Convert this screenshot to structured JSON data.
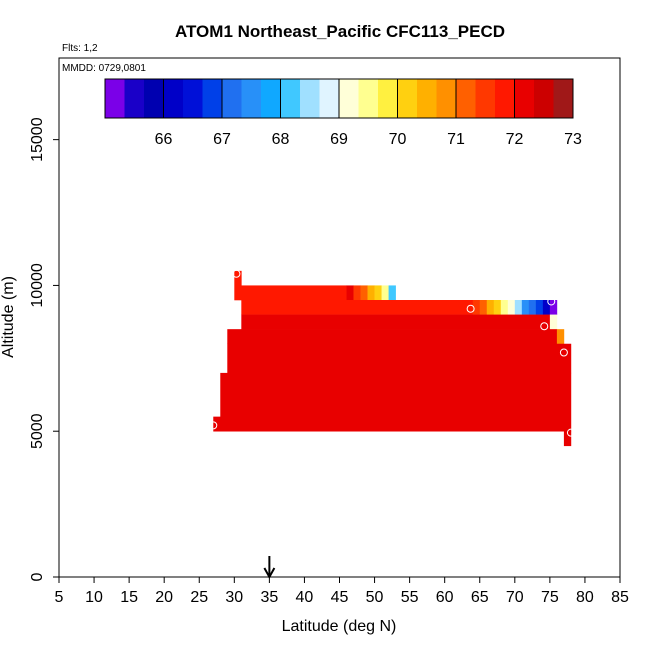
{
  "chart_data": {
    "type": "heatmap",
    "title": "ATOM1 Northeast_Pacific CFC113_PECD",
    "flights_label": "Flts: 1,2",
    "mmdd_label": "MMDD: 0729,0801",
    "xlabel": "Latitude (deg N)",
    "ylabel": "Altitude (m)",
    "xlim": [
      5,
      85
    ],
    "ylim": [
      0,
      17800
    ],
    "x_ticks": [
      "5",
      "10",
      "15",
      "20",
      "25",
      "30",
      "35",
      "40",
      "45",
      "50",
      "55",
      "60",
      "65",
      "70",
      "75",
      "80",
      "85"
    ],
    "x_tick_values": [
      5,
      10,
      15,
      20,
      25,
      30,
      35,
      40,
      45,
      50,
      55,
      60,
      65,
      70,
      75,
      80,
      85
    ],
    "y_ticks": [
      "0",
      "5000",
      "10000",
      "15000"
    ],
    "y_tick_values": [
      0,
      5000,
      10000,
      15000
    ],
    "arrow_latitude": 35,
    "colorbar": {
      "range": [
        65,
        73
      ],
      "tick_labels": [
        "66",
        "67",
        "68",
        "69",
        "70",
        "71",
        "72",
        "73"
      ],
      "tick_values": [
        66,
        67,
        68,
        69,
        70,
        71,
        72,
        73
      ],
      "colors": [
        "#7b00e8",
        "#1a00c8",
        "#0000b0",
        "#0000c8",
        "#0010d8",
        "#0040e8",
        "#2070f0",
        "#2890f8",
        "#10a8ff",
        "#40c8ff",
        "#a0e0ff",
        "#e0f4ff",
        "#ffffd8",
        "#ffff90",
        "#fff040",
        "#ffd010",
        "#ffb000",
        "#ff9000",
        "#ff6000",
        "#ff3800",
        "#ff1800",
        "#e80000",
        "#cc0000",
        "#a01818"
      ]
    },
    "cells": [
      {
        "lat0": 30,
        "lat1": 31,
        "alt0": 9500,
        "alt1": 10500,
        "value": 71.8
      },
      {
        "lat0": 31,
        "lat1": 46,
        "alt0": 9500,
        "alt1": 10000,
        "value": 71.85
      },
      {
        "lat0": 46,
        "lat1": 47,
        "alt0": 9500,
        "alt1": 10000,
        "value": 72.0
      },
      {
        "lat0": 47,
        "lat1": 48,
        "alt0": 9500,
        "alt1": 10000,
        "value": 71.6
      },
      {
        "lat0": 48,
        "lat1": 49,
        "alt0": 9500,
        "alt1": 10000,
        "value": 71.1
      },
      {
        "lat0": 49,
        "lat1": 50,
        "alt0": 9500,
        "alt1": 10000,
        "value": 70.6
      },
      {
        "lat0": 50,
        "lat1": 51,
        "alt0": 9500,
        "alt1": 10000,
        "value": 70.2
      },
      {
        "lat0": 51,
        "lat1": 52,
        "alt0": 9500,
        "alt1": 10000,
        "value": 69.6
      },
      {
        "lat0": 52,
        "lat1": 53,
        "alt0": 9500,
        "alt1": 10000,
        "value": 68.2
      },
      {
        "lat0": 31,
        "lat1": 64,
        "alt0": 9000,
        "alt1": 9500,
        "value": 71.85
      },
      {
        "lat0": 64,
        "lat1": 65,
        "alt0": 9000,
        "alt1": 9500,
        "value": 71.6
      },
      {
        "lat0": 65,
        "lat1": 66,
        "alt0": 9000,
        "alt1": 9500,
        "value": 71.1
      },
      {
        "lat0": 66,
        "lat1": 67,
        "alt0": 9000,
        "alt1": 9500,
        "value": 70.6
      },
      {
        "lat0": 67,
        "lat1": 68,
        "alt0": 9000,
        "alt1": 9500,
        "value": 70.2
      },
      {
        "lat0": 68,
        "lat1": 69,
        "alt0": 9000,
        "alt1": 9500,
        "value": 69.6
      },
      {
        "lat0": 69,
        "lat1": 70,
        "alt0": 9000,
        "alt1": 9500,
        "value": 69.2
      },
      {
        "lat0": 70,
        "lat1": 71,
        "alt0": 9000,
        "alt1": 9500,
        "value": 68.4
      },
      {
        "lat0": 71,
        "lat1": 72,
        "alt0": 9000,
        "alt1": 9500,
        "value": 67.6
      },
      {
        "lat0": 72,
        "lat1": 73,
        "alt0": 9000,
        "alt1": 9500,
        "value": 67.2
      },
      {
        "lat0": 73,
        "lat1": 74,
        "alt0": 9000,
        "alt1": 9500,
        "value": 66.7
      },
      {
        "lat0": 74,
        "lat1": 75,
        "alt0": 9000,
        "alt1": 9500,
        "value": 66.1
      },
      {
        "lat0": 75,
        "lat1": 76,
        "alt0": 9000,
        "alt1": 9500,
        "value": 65.2
      },
      {
        "lat0": 31,
        "lat1": 75,
        "alt0": 8500,
        "alt1": 9000,
        "value": 72.0
      },
      {
        "lat0": 75,
        "lat1": 76,
        "alt0": 8500,
        "alt1": 9000,
        "value": 69.3
      },
      {
        "lat0": 29,
        "lat1": 76,
        "alt0": 8000,
        "alt1": 8500,
        "value": 72.0
      },
      {
        "lat0": 76,
        "lat1": 77,
        "alt0": 8000,
        "alt1": 8500,
        "value": 70.8
      },
      {
        "lat0": 29,
        "lat1": 78,
        "alt0": 7000,
        "alt1": 8000,
        "value": 72.1
      },
      {
        "lat0": 28,
        "lat1": 78,
        "alt0": 5000,
        "alt1": 7000,
        "value": 72.2
      },
      {
        "lat0": 27,
        "lat1": 28,
        "alt0": 5000,
        "alt1": 5500,
        "value": 72.2
      },
      {
        "lat0": 77,
        "lat1": 78,
        "alt0": 4500,
        "alt1": 5000,
        "value": 72.3
      }
    ],
    "sample_points": [
      {
        "lat": 30.3,
        "alt": 10400
      },
      {
        "lat": 27,
        "alt": 5200
      },
      {
        "lat": 63.7,
        "alt": 9200
      },
      {
        "lat": 74.2,
        "alt": 8600
      },
      {
        "lat": 75.2,
        "alt": 9450
      },
      {
        "lat": 77,
        "alt": 7700
      },
      {
        "lat": 78,
        "alt": 4950
      }
    ]
  }
}
